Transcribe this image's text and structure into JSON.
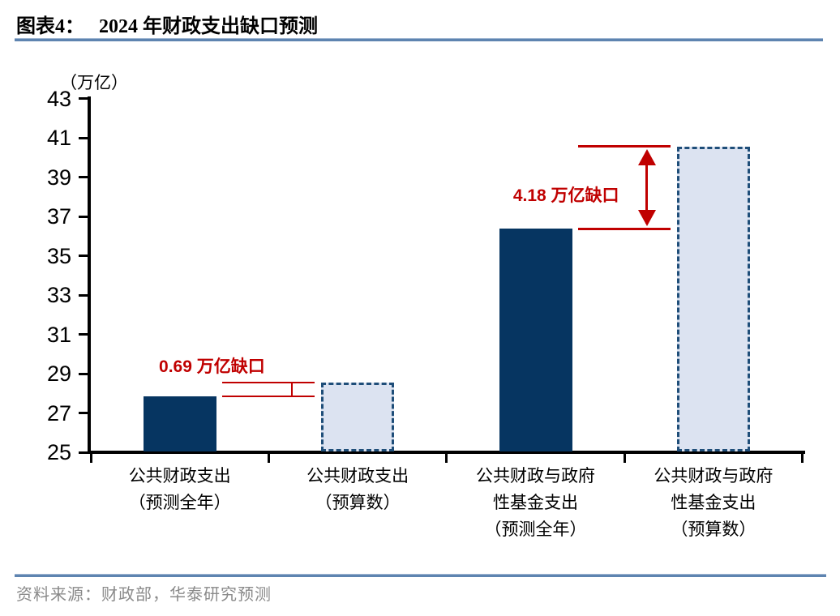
{
  "figure": {
    "title_prefix": "图表4：",
    "title_text": "2024 年财政支出缺口预测",
    "source_note": "资料来源：财政部，华泰研究预测"
  },
  "chart_data": {
    "type": "bar",
    "title": "2024 年财政支出缺口预测",
    "unit_label": "（万亿）",
    "ylim": [
      25,
      43
    ],
    "ytick_interval": 2,
    "yticks": [
      25,
      27,
      29,
      31,
      33,
      35,
      37,
      39,
      41,
      43
    ],
    "grid": "off",
    "legend": "none",
    "categories": [
      {
        "lines": [
          "公共财政支出",
          "（预测全年）"
        ],
        "full": "公共财政支出（预测全年）"
      },
      {
        "lines": [
          "公共财政支出",
          "（预算数）"
        ],
        "full": "公共财政支出（预算数）"
      },
      {
        "lines": [
          "公共财政与政府",
          "性基金支出",
          "（预测全年）"
        ],
        "full": "公共财政与政府性基金支出（预测全年）"
      },
      {
        "lines": [
          "公共财政与政府",
          "性基金支出",
          "（预算数）"
        ],
        "full": "公共财政与政府性基金支出（预算数）"
      }
    ],
    "values": [
      27.86,
      28.55,
      36.38,
      40.56
    ],
    "bar_styles": [
      "solid",
      "dashed",
      "solid",
      "dashed"
    ],
    "annotations": [
      {
        "label": "0.69 万亿缺口",
        "gap": 0.69,
        "from_bar": 0,
        "to_bar": 1,
        "marker": "bracket",
        "label_placement": "above"
      },
      {
        "label": "4.18 万亿缺口",
        "gap": 4.18,
        "from_bar": 2,
        "to_bar": 3,
        "marker": "double-arrow",
        "label_placement": "middle"
      }
    ],
    "colors": {
      "solid_bar": "#063561",
      "dashed_bar_fill": "#dce3f1",
      "dashed_bar_border": "#1f4e79",
      "annotation_red": "#c00000",
      "axis": "#000000",
      "rule_blue": "#5e84b0",
      "source_gray": "#8a8a8a"
    }
  }
}
